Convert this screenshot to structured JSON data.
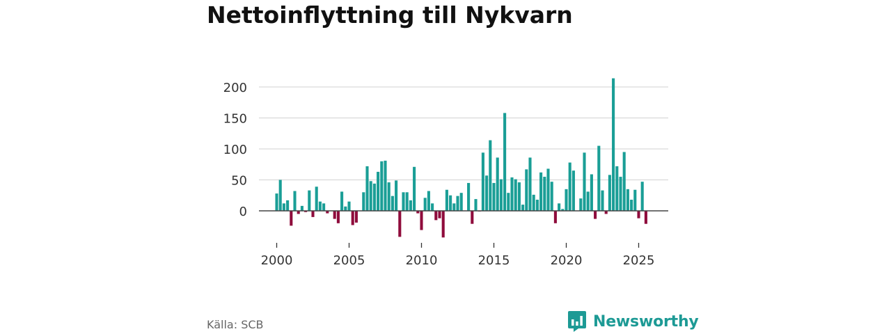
{
  "chart_data": {
    "type": "bar",
    "title": "Nettoinflyttning till Nykvarn",
    "xlabel": "",
    "ylabel": "",
    "x_ticks": [
      "2000",
      "2005",
      "2010",
      "2015",
      "2020",
      "2025"
    ],
    "y_ticks": [
      "0",
      "50",
      "100",
      "150",
      "200"
    ],
    "xlim": [
      2000.0,
      2025.75
    ],
    "ylim": [
      -45,
      215
    ],
    "grid": true,
    "legend": "none",
    "positive_color": "#1a9e96",
    "negative_color": "#8f0c3c",
    "zero_line_color": "#444444",
    "x": [
      "2000K1",
      "2000K2",
      "2000K3",
      "2000K4",
      "2001K1",
      "2001K2",
      "2001K3",
      "2001K4",
      "2002K1",
      "2002K2",
      "2002K3",
      "2002K4",
      "2003K1",
      "2003K2",
      "2003K3",
      "2003K4",
      "2004K1",
      "2004K2",
      "2004K3",
      "2004K4",
      "2005K1",
      "2005K2",
      "2005K3",
      "2005K4",
      "2006K1",
      "2006K2",
      "2006K3",
      "2006K4",
      "2007K1",
      "2007K2",
      "2007K3",
      "2007K4",
      "2008K1",
      "2008K2",
      "2008K3",
      "2008K4",
      "2009K1",
      "2009K2",
      "2009K3",
      "2009K4",
      "2010K1",
      "2010K2",
      "2010K3",
      "2010K4",
      "2011K1",
      "2011K2",
      "2011K3",
      "2011K4",
      "2012K1",
      "2012K2",
      "2012K3",
      "2012K4",
      "2013K1",
      "2013K2",
      "2013K3",
      "2013K4",
      "2014K1",
      "2014K2",
      "2014K3",
      "2014K4",
      "2015K1",
      "2015K2",
      "2015K3",
      "2015K4",
      "2016K1",
      "2016K2",
      "2016K3",
      "2016K4",
      "2017K1",
      "2017K2",
      "2017K3",
      "2017K4",
      "2018K1",
      "2018K2",
      "2018K3",
      "2018K4",
      "2019K1",
      "2019K2",
      "2019K3",
      "2019K4",
      "2020K1",
      "2020K2",
      "2020K3",
      "2020K4",
      "2021K1",
      "2021K2",
      "2021K3",
      "2021K4",
      "2022K1",
      "2022K2",
      "2022K3",
      "2022K4",
      "2023K1",
      "2023K2",
      "2023K3",
      "2023K4",
      "2024K1",
      "2024K2",
      "2024K3",
      "2024K4",
      "2025K1",
      "2025K2",
      "2025K3"
    ],
    "values": [
      28,
      50,
      12,
      17,
      -24,
      32,
      -5,
      8,
      -2,
      33,
      -10,
      39,
      15,
      12,
      -4,
      0,
      -13,
      -20,
      31,
      7,
      15,
      -23,
      -19,
      0,
      30,
      72,
      48,
      44,
      63,
      80,
      81,
      46,
      24,
      49,
      -42,
      30,
      30,
      17,
      71,
      -4,
      -31,
      21,
      32,
      12,
      -15,
      -12,
      -43,
      34,
      25,
      12,
      24,
      29,
      0,
      45,
      -21,
      19,
      -1,
      94,
      57,
      114,
      45,
      86,
      51,
      158,
      29,
      54,
      51,
      46,
      10,
      67,
      86,
      26,
      18,
      62,
      55,
      68,
      47,
      -20,
      12,
      3,
      35,
      78,
      65,
      0,
      20,
      94,
      31,
      59,
      -13,
      105,
      33,
      -5,
      58,
      214,
      72,
      55,
      95,
      35,
      18,
      34,
      -12,
      47,
      -21
    ]
  },
  "footer": {
    "source": "Källa: SCB",
    "brand": "Newsworthy",
    "brand_color": "#1d9a95"
  }
}
